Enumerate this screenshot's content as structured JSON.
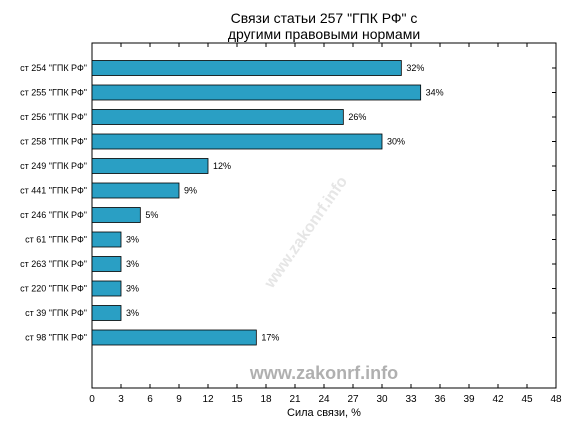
{
  "chart_data": {
    "type": "bar",
    "orientation": "horizontal",
    "title_lines": [
      "Связи статьи 257 \"ГПК РФ\" с",
      "другими правовыми нормами"
    ],
    "xlabel": "Сила связи, %",
    "ylabel": "",
    "xlim": [
      0,
      48
    ],
    "xticks": [
      0,
      3,
      6,
      9,
      12,
      15,
      18,
      21,
      24,
      27,
      30,
      33,
      36,
      39,
      42,
      45,
      48
    ],
    "grid": false,
    "bar_color": "#2a9fc4",
    "categories": [
      "ст 254 \"ГПК РФ\"",
      "ст 255 \"ГПК РФ\"",
      "ст 256 \"ГПК РФ\"",
      "ст 258 \"ГПК РФ\"",
      "ст 249 \"ГПК РФ\"",
      "ст 441 \"ГПК РФ\"",
      "ст 246 \"ГПК РФ\"",
      "ст 61 \"ГПК РФ\"",
      "ст 263 \"ГПК РФ\"",
      "ст 220 \"ГПК РФ\"",
      "ст 39 \"ГПК РФ\"",
      "ст 98 \"ГПК РФ\""
    ],
    "values": [
      32,
      34,
      26,
      30,
      12,
      9,
      5,
      3,
      3,
      3,
      3,
      17
    ],
    "data_labels": [
      "32%",
      "34%",
      "26%",
      "30%",
      "12%",
      "9%",
      "5%",
      "3%",
      "3%",
      "3%",
      "3%",
      "17%"
    ]
  },
  "watermark": "www.zakonrf.info"
}
